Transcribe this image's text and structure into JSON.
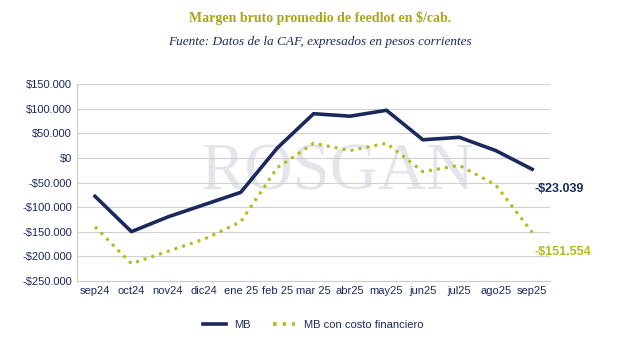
{
  "chart_data": {
    "type": "line",
    "title": "Margen bruto promedio de feedlot en $/cab.",
    "subtitle": "Fuente: Datos de la CAF, expresados en pesos corrientes",
    "watermark": "ROSGAN",
    "categories": [
      "sep24",
      "oct24",
      "nov24",
      "dic24",
      "ene 25",
      "feb 25",
      "mar 25",
      "abr25",
      "may25",
      "jun25",
      "jul25",
      "ago25",
      "sep25"
    ],
    "series": [
      {
        "name": "MB",
        "color": "#1b2a5e",
        "line_style": "solid",
        "values": [
          -78000,
          -150000,
          -120000,
          -95000,
          -70000,
          20000,
          90000,
          85000,
          97000,
          37000,
          42000,
          15000,
          -23039
        ],
        "value_labels": [
          null,
          null,
          null,
          null,
          null,
          null,
          null,
          null,
          null,
          null,
          null,
          null,
          "-$23.039"
        ]
      },
      {
        "name": "MB con costo financiero",
        "color": "#b3bb1f",
        "line_style": "dotted",
        "values": [
          -140000,
          -215000,
          -190000,
          -165000,
          -130000,
          -20000,
          30000,
          15000,
          30000,
          -28000,
          -15000,
          -55000,
          -151554
        ],
        "value_labels": [
          null,
          null,
          null,
          null,
          null,
          null,
          null,
          null,
          null,
          null,
          null,
          null,
          "-$151.554"
        ]
      }
    ],
    "ylim": [
      -250000,
      150000
    ],
    "yticks": [
      {
        "value": 150000,
        "label": "$150.000"
      },
      {
        "value": 100000,
        "label": "$100.000"
      },
      {
        "value": 50000,
        "label": "$50.000"
      },
      {
        "value": 0,
        "label": "$0"
      },
      {
        "value": -50000,
        "label": "-$50.000"
      },
      {
        "value": -100000,
        "label": "-$100.000"
      },
      {
        "value": -150000,
        "label": "-$150.000"
      },
      {
        "value": -200000,
        "label": "-$200.000"
      },
      {
        "value": -250000,
        "label": "-$250.000"
      }
    ],
    "grid": true,
    "legend": "lower center",
    "data_labels": true
  }
}
